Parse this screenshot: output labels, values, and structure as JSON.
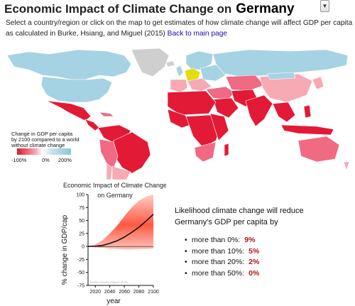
{
  "header": {
    "title": "Economic Impact of Climate Change on",
    "country": "Germany",
    "dropdown_icon": "chevron-down-icon"
  },
  "description": {
    "text": "Select a country/region or click on the map to get estimates of how climate change will affect GDP per capita as calculated in Burke, Hsiang, and Miguel (2015)",
    "link": "Back to main page"
  },
  "map": {
    "selected_country": "Germany",
    "colors": {
      "selected": "#e3dd0c",
      "no_data": "#cfcfcf",
      "strong_loss": "#e31a36",
      "loss": "#ef6a82",
      "mild_loss": "#f7a9b4",
      "gain": "#a6d3e3",
      "ocean": "#ffffff"
    },
    "legend": {
      "lines": [
        "Change in GDP per capita",
        "by 2100 compared to a world",
        "without climate change"
      ],
      "ticks": [
        "-100%",
        "0%",
        "200%"
      ]
    }
  },
  "chart_data": {
    "type": "line",
    "title": "Economic Impact of Climate Change on Germany",
    "xlabel": "year",
    "ylabel": "% change in GDP/cap",
    "xlim": [
      2010,
      2100
    ],
    "ylim": [
      -75,
      100
    ],
    "x_ticks": [
      2020,
      2040,
      2060,
      2080,
      2100
    ],
    "y_ticks": [
      -75,
      -50,
      -25,
      0,
      25,
      50,
      75,
      100
    ],
    "series": [
      {
        "x": [
          2010,
          2020,
          2030,
          2040,
          2050,
          2060,
          2070,
          2080,
          2090,
          2100
        ],
        "values": [
          0,
          0.5,
          2,
          6,
          11,
          18,
          27,
          37,
          49,
          62
        ]
      }
    ],
    "uncertainty_band": {
      "x": [
        2010,
        2020,
        2030,
        2040,
        2050,
        2060,
        2070,
        2080,
        2090,
        2100
      ],
      "upper": [
        0,
        4,
        12,
        25,
        40,
        58,
        75,
        88,
        96,
        100
      ],
      "lower": [
        0,
        -2,
        -3,
        -4,
        -5,
        -6,
        -6,
        -5,
        -5,
        -4
      ]
    },
    "watermark": "Burke Hsiang Miguel 2015",
    "colors": {
      "line": "#111111",
      "band": "#ff3b1f"
    }
  },
  "likelihood": {
    "heading": "Likelihood climate change will reduce Germany's GDP per capita by",
    "items": [
      {
        "label": "more than 0%:",
        "value": "9%"
      },
      {
        "label": "more than 10%:",
        "value": "5%"
      },
      {
        "label": "more than 20%:",
        "value": "2%"
      },
      {
        "label": "more than 50%:",
        "value": "0%"
      }
    ]
  }
}
